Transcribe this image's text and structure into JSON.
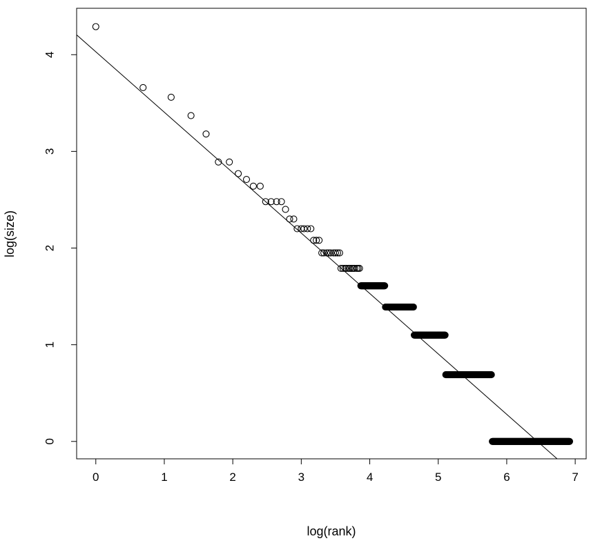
{
  "chart_data": {
    "type": "scatter",
    "title": "",
    "xlabel": "log(rank)",
    "ylabel": "log(size)",
    "xlim": [
      -0.28,
      7.16
    ],
    "ylim": [
      -0.18,
      4.48
    ],
    "x_ticks": [
      0,
      1,
      2,
      3,
      4,
      5,
      6,
      7
    ],
    "y_ticks": [
      0,
      1,
      2,
      3,
      4
    ],
    "grid": false,
    "marker": "open-circle",
    "point_color": "#000000",
    "points": [
      [
        0,
        4.29
      ],
      [
        0.69,
        3.66
      ],
      [
        1.1,
        3.56
      ],
      [
        1.39,
        3.37
      ],
      [
        1.61,
        3.18
      ],
      [
        1.79,
        2.89
      ],
      [
        1.95,
        2.89
      ],
      [
        2.08,
        2.77
      ],
      [
        2.2,
        2.71
      ],
      [
        2.3,
        2.64
      ],
      [
        2.4,
        2.64
      ],
      [
        2.48,
        2.48
      ],
      [
        2.56,
        2.48
      ],
      [
        2.64,
        2.48
      ],
      [
        2.71,
        2.48
      ],
      [
        2.77,
        2.4
      ],
      [
        2.83,
        2.3
      ],
      [
        2.89,
        2.3
      ],
      [
        2.94,
        2.2
      ],
      [
        3.0,
        2.2
      ],
      [
        3.04,
        2.2
      ],
      [
        3.09,
        2.2
      ],
      [
        3.14,
        2.2
      ],
      [
        3.18,
        2.08
      ],
      [
        3.22,
        2.08
      ],
      [
        3.26,
        2.08
      ],
      [
        3.3,
        1.95
      ],
      [
        3.33,
        1.95
      ],
      [
        3.37,
        1.95
      ],
      [
        3.4,
        1.95
      ],
      [
        3.43,
        1.95
      ],
      [
        3.47,
        1.95
      ],
      [
        3.5,
        1.95
      ],
      [
        3.53,
        1.95
      ],
      [
        3.56,
        1.95
      ],
      [
        3.58,
        1.79
      ],
      [
        3.61,
        1.79
      ],
      [
        3.64,
        1.79
      ],
      [
        3.66,
        1.79
      ],
      [
        3.69,
        1.79
      ],
      [
        3.71,
        1.79
      ],
      [
        3.74,
        1.79
      ],
      [
        3.76,
        1.79
      ],
      [
        3.78,
        1.79
      ],
      [
        3.81,
        1.79
      ],
      [
        3.83,
        1.79
      ],
      [
        3.85,
        1.79
      ]
    ],
    "runs": [
      {
        "y": 1.61,
        "x_start": 3.87,
        "x_end": 4.22
      },
      {
        "y": 1.39,
        "x_start": 4.23,
        "x_end": 4.64
      },
      {
        "y": 1.1,
        "x_start": 4.65,
        "x_end": 5.1
      },
      {
        "y": 0.69,
        "x_start": 5.11,
        "x_end": 5.78
      },
      {
        "y": 0.0,
        "x_start": 5.79,
        "x_end": 6.92
      }
    ],
    "fit_line": {
      "intercept": 4.03,
      "slope": -0.625,
      "color": "#000000"
    }
  }
}
